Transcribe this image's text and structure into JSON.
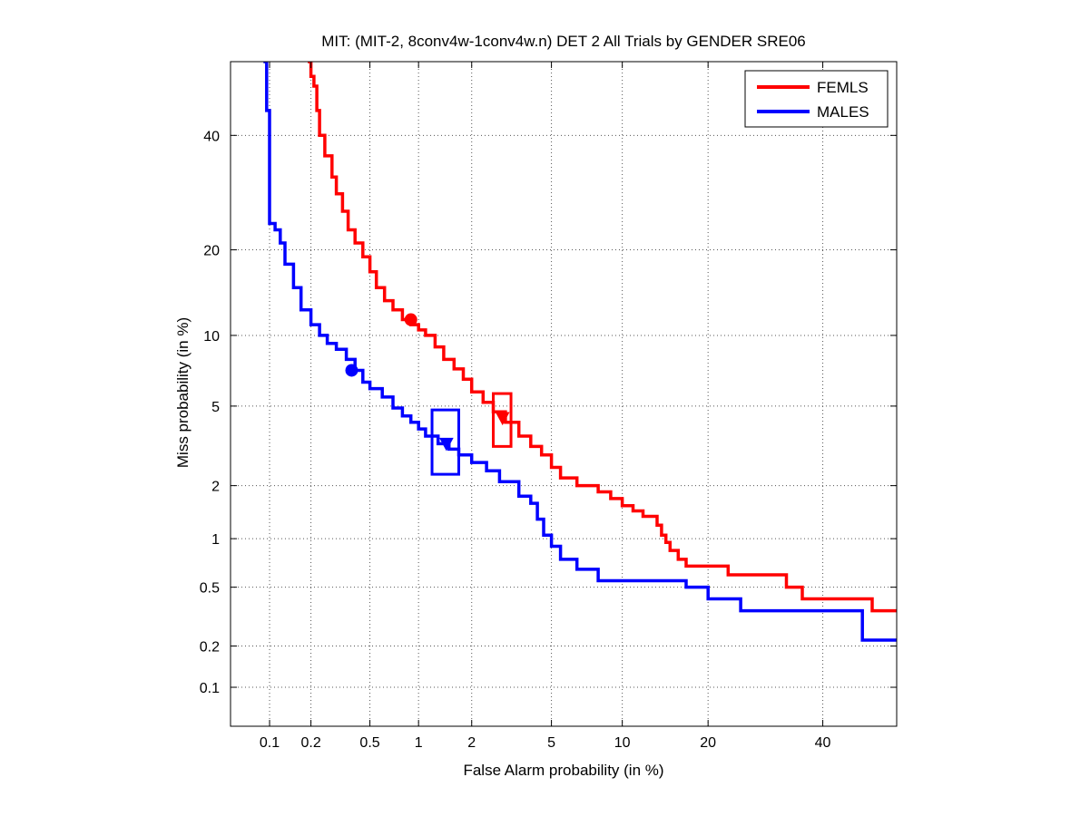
{
  "chart_data": {
    "type": "line",
    "title": "MIT: (MIT-2, 8conv4w-1conv4w.n) DET 2 All Trials by GENDER SRE06",
    "xlabel": "False Alarm probability (in %)",
    "ylabel": "Miss probability (in %)",
    "scale": "normal-deviate (probit) on both axes",
    "xlim": [
      0.05,
      55
    ],
    "ylim": [
      0.05,
      55
    ],
    "grid": true,
    "legend_position": "top-right",
    "x_ticks": [
      0.1,
      0.2,
      0.5,
      1,
      2,
      5,
      10,
      20,
      40
    ],
    "x_tick_labels": [
      "0.1",
      "0.2",
      "0.5",
      "1",
      "2",
      "5",
      "10",
      "20",
      "40"
    ],
    "y_ticks": [
      0.1,
      0.2,
      0.5,
      1,
      2,
      5,
      10,
      20,
      40
    ],
    "y_tick_labels": [
      "0.1",
      "0.2",
      "0.5",
      "1",
      "2",
      "5",
      "10",
      "20",
      "40"
    ],
    "series": [
      {
        "name": "FEMLS",
        "color": "#ff0000",
        "x": [
          0.19,
          0.2,
          0.21,
          0.22,
          0.23,
          0.25,
          0.28,
          0.3,
          0.33,
          0.36,
          0.4,
          0.45,
          0.5,
          0.55,
          0.62,
          0.7,
          0.8,
          0.9,
          1.0,
          1.1,
          1.25,
          1.4,
          1.6,
          1.8,
          2.0,
          2.3,
          2.6,
          3.0,
          3.5,
          4.0,
          4.5,
          5.0,
          5.5,
          6.5,
          8.0,
          9.0,
          10.0,
          11.0,
          12.0,
          13.0,
          13.5,
          14.0,
          14.5,
          15.0,
          16.0,
          17.0,
          20.0,
          23.0,
          25.0,
          30.0,
          33.0,
          36.0,
          45.0,
          50.0,
          55.0
        ],
        "y": [
          55,
          52,
          50,
          45,
          40,
          36,
          32,
          29,
          26,
          23,
          21,
          19,
          17,
          15,
          13.5,
          12.5,
          11.5,
          11,
          10.5,
          10,
          9,
          8,
          7.3,
          6.6,
          5.8,
          5.2,
          4.7,
          4.2,
          3.6,
          3.2,
          2.9,
          2.5,
          2.2,
          2.0,
          1.85,
          1.7,
          1.55,
          1.45,
          1.35,
          1.35,
          1.2,
          1.05,
          0.95,
          0.85,
          0.75,
          0.68,
          0.68,
          0.6,
          0.6,
          0.6,
          0.5,
          0.42,
          0.42,
          0.35,
          0.35
        ]
      },
      {
        "name": "MALES",
        "color": "#0000ff",
        "x": [
          0.09,
          0.095,
          0.1,
          0.11,
          0.12,
          0.13,
          0.15,
          0.17,
          0.2,
          0.23,
          0.26,
          0.3,
          0.35,
          0.4,
          0.45,
          0.5,
          0.6,
          0.7,
          0.8,
          0.9,
          1.0,
          1.1,
          1.3,
          1.5,
          1.7,
          2.0,
          2.4,
          2.8,
          3.5,
          4.0,
          4.3,
          4.6,
          5.0,
          5.5,
          6.5,
          8.0,
          10.0,
          12.0,
          15.0,
          17.0,
          20.0,
          25.0,
          30.0,
          40.0,
          48.0,
          55.0
        ],
        "y": [
          55,
          45,
          24,
          23,
          21,
          18,
          15,
          12.5,
          11,
          10,
          9.3,
          8.8,
          8,
          7.2,
          6.4,
          6,
          5.5,
          4.9,
          4.5,
          4.2,
          3.9,
          3.6,
          3.3,
          3.1,
          2.9,
          2.65,
          2.4,
          2.1,
          1.75,
          1.6,
          1.3,
          1.05,
          0.9,
          0.75,
          0.65,
          0.55,
          0.55,
          0.55,
          0.55,
          0.5,
          0.42,
          0.35,
          0.35,
          0.35,
          0.22,
          0.22
        ]
      }
    ],
    "markers": [
      {
        "series": "FEMLS",
        "shape": "circle",
        "x": 0.9,
        "y": 11.5,
        "color": "#ff0000"
      },
      {
        "series": "MALES",
        "shape": "circle",
        "x": 0.38,
        "y": 7.2,
        "color": "#0000ff"
      },
      {
        "series": "FEMLS",
        "shape": "triangle",
        "x": 2.9,
        "y": 4.4,
        "color": "#ff0000"
      },
      {
        "series": "MALES",
        "shape": "triangle",
        "x": 1.45,
        "y": 3.3,
        "color": "#0000ff"
      }
    ],
    "confidence_boxes": [
      {
        "series": "FEMLS",
        "x_range": [
          2.6,
          3.2
        ],
        "y_range": [
          3.2,
          5.7
        ],
        "color": "#ff0000"
      },
      {
        "series": "MALES",
        "x_range": [
          1.2,
          1.7
        ],
        "y_range": [
          2.3,
          4.8
        ],
        "color": "#0000ff"
      }
    ]
  }
}
